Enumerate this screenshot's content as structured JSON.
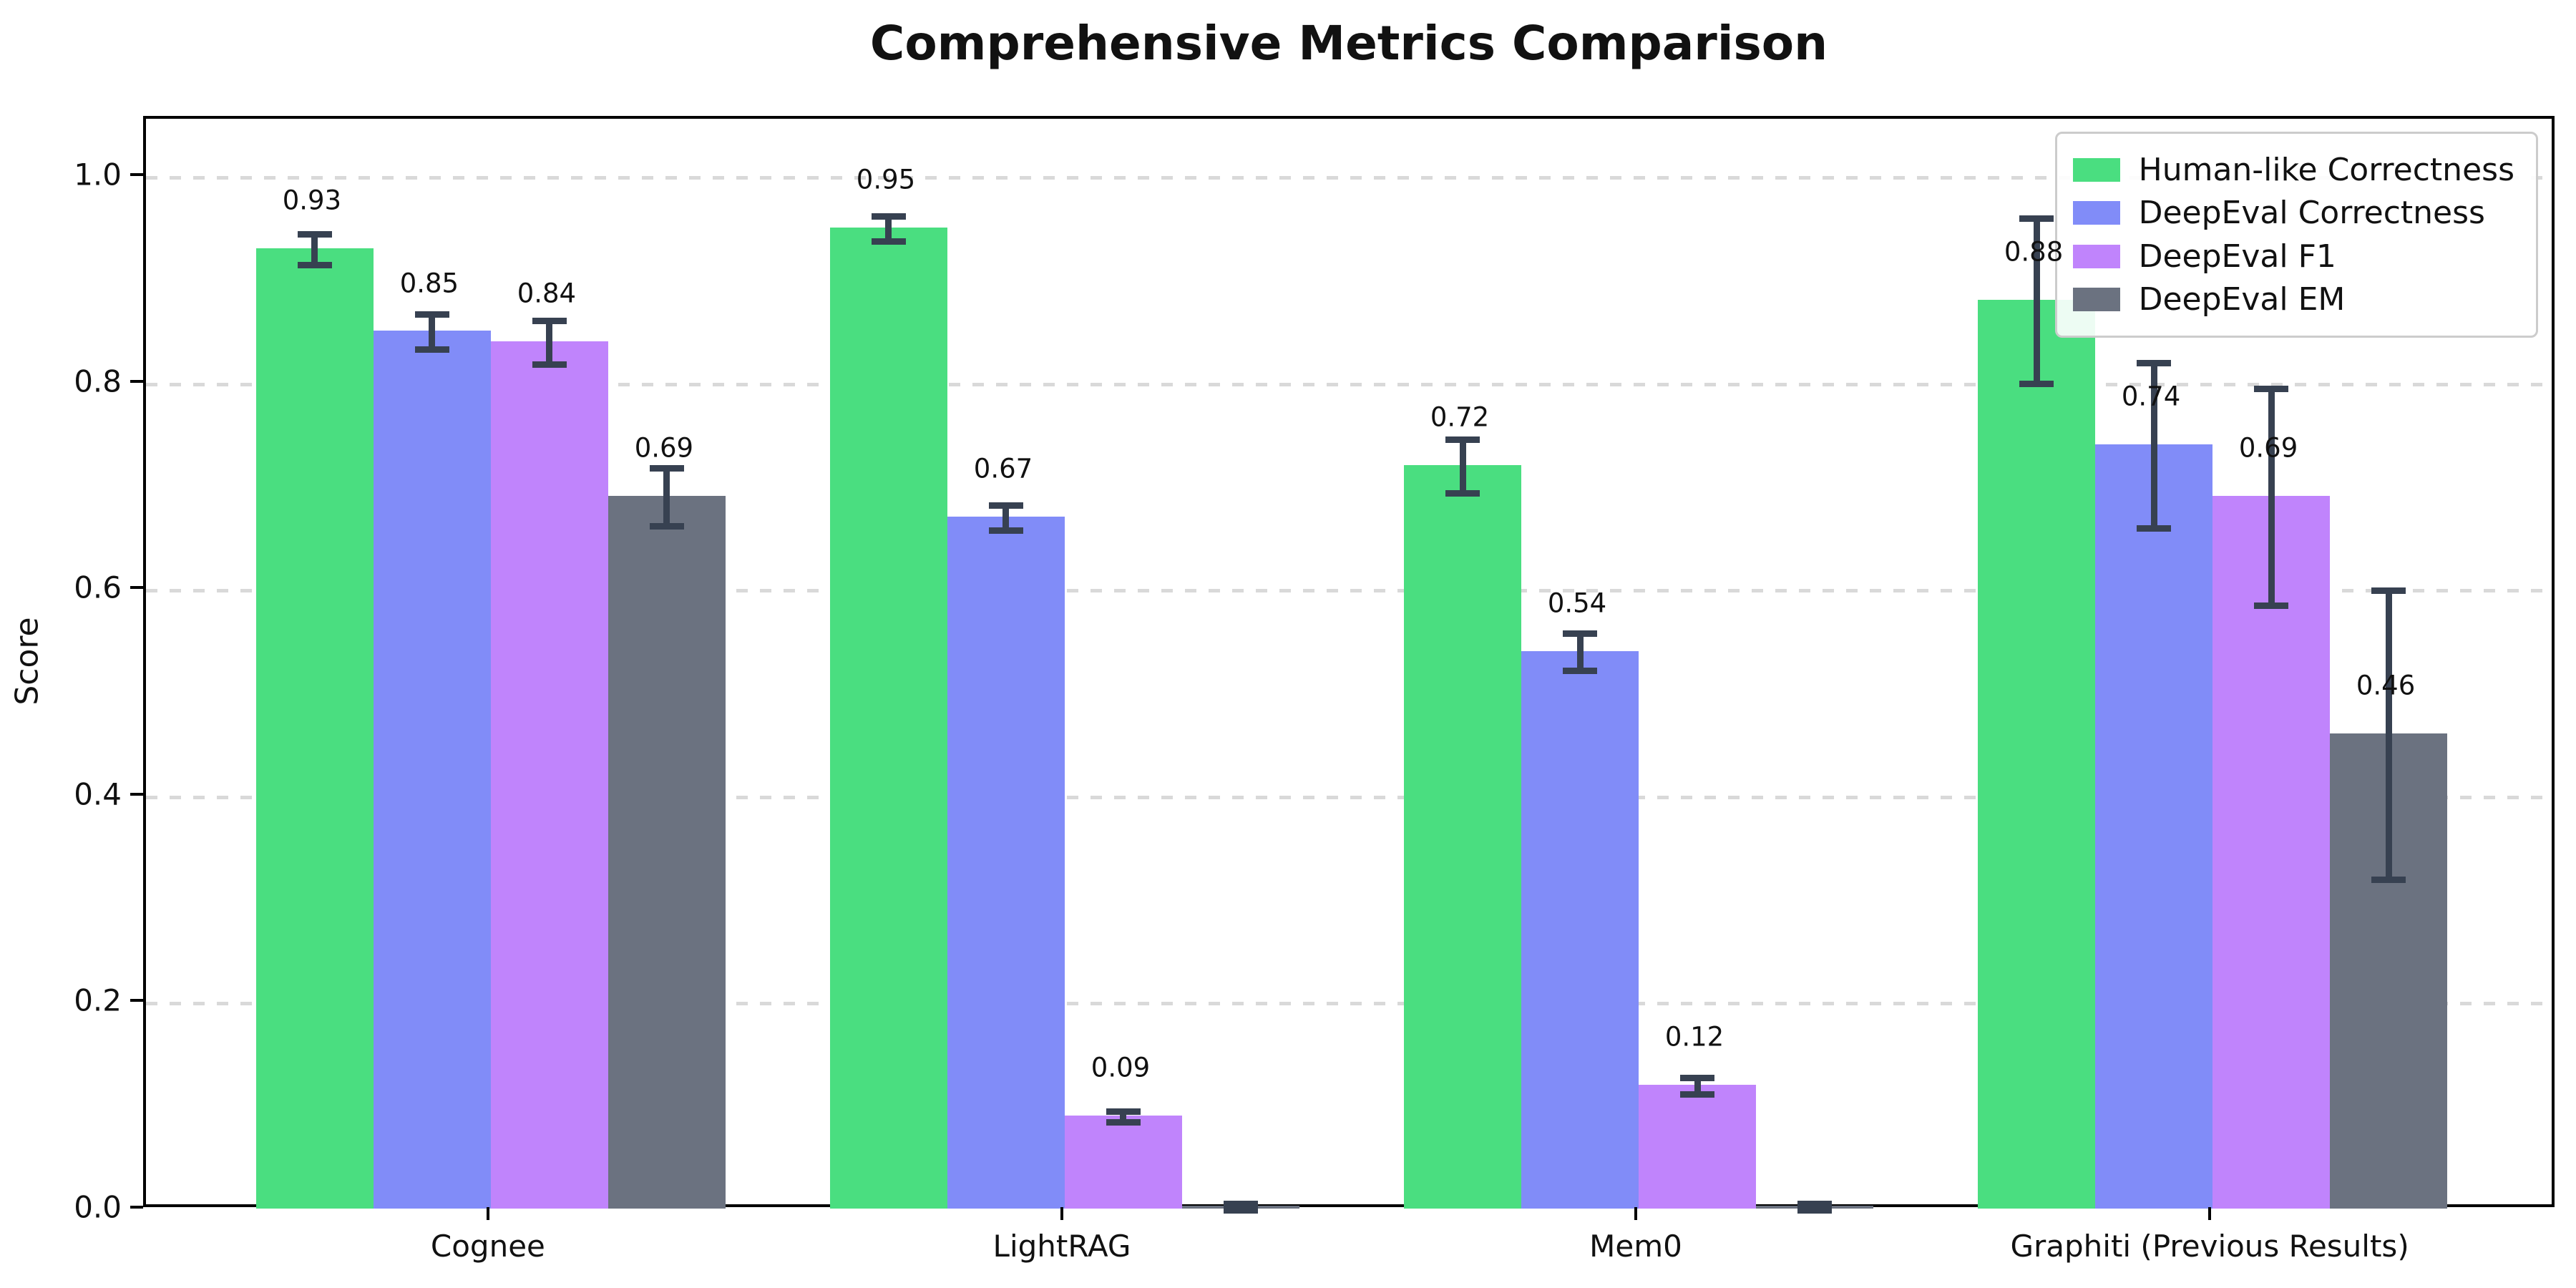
{
  "title": "Comprehensive Metrics Comparison",
  "axes": {
    "ylabel": "Score",
    "yticks": [
      "0.0",
      "0.2",
      "0.4",
      "0.6",
      "0.8",
      "1.0"
    ],
    "ytick_values": [
      0.0,
      0.2,
      0.4,
      0.6,
      0.8,
      1.0
    ]
  },
  "colors": {
    "error_bar": "#374151",
    "grid": "#d9d9d9",
    "spine": "#000000",
    "text": "#111111",
    "background": "#ffffff"
  },
  "chart_data": {
    "type": "bar",
    "title": "Comprehensive Metrics Comparison",
    "xlabel": "",
    "ylabel": "Score",
    "ylim": [
      0,
      1.057
    ],
    "grid": "horizontal dashed at 0.2 intervals",
    "legend_position": "upper right",
    "error_bars": true,
    "categories": [
      "Cognee",
      "LightRAG",
      "Mem0",
      "Graphiti (Previous Results)"
    ],
    "series": [
      {
        "name": "Human-like Correctness",
        "color": "#4ade80",
        "values": [
          0.93,
          0.95,
          0.72,
          0.88
        ],
        "errors": [
          0.015,
          0.012,
          0.026,
          0.08
        ],
        "labels": [
          "0.93",
          "0.95",
          "0.72",
          "0.88"
        ]
      },
      {
        "name": "DeepEval Correctness",
        "color": "#818cf8",
        "values": [
          0.85,
          0.67,
          0.54,
          0.74
        ],
        "errors": [
          0.017,
          0.012,
          0.018,
          0.08
        ],
        "labels": [
          "0.85",
          "0.67",
          "0.54",
          "0.74"
        ]
      },
      {
        "name": "DeepEval F1",
        "color": "#c084fc",
        "values": [
          0.84,
          0.09,
          0.12,
          0.69
        ],
        "errors": [
          0.021,
          0.005,
          0.008,
          0.105
        ],
        "labels": [
          "0.84",
          "0.09",
          "0.12",
          "0.69"
        ]
      },
      {
        "name": "DeepEval EM",
        "color": "#6b7280",
        "values": [
          0.69,
          0.003,
          0.003,
          0.46
        ],
        "errors": [
          0.028,
          0.003,
          0.003,
          0.14
        ],
        "labels": [
          "0.69",
          "",
          "",
          "0.46"
        ]
      }
    ]
  }
}
